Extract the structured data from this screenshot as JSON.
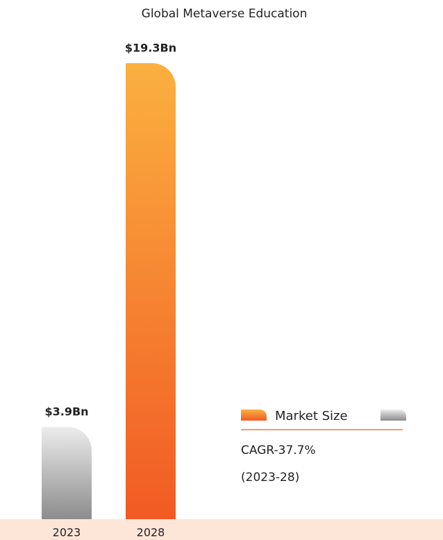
{
  "chart_data": {
    "type": "bar",
    "title": "Global Metaverse Education",
    "categories": [
      "2023",
      "2028"
    ],
    "values": [
      3.9,
      19.3
    ],
    "value_labels": [
      "$3.9Bn",
      "$19.3Bn"
    ],
    "colors": [
      [
        "#ececec",
        "#8c8c8c"
      ],
      [
        "#fbb040",
        "#f15a24"
      ]
    ],
    "legend": [
      "Market Size"
    ],
    "annotations": [
      "CAGR-37.7%",
      "(2023-28)"
    ]
  }
}
